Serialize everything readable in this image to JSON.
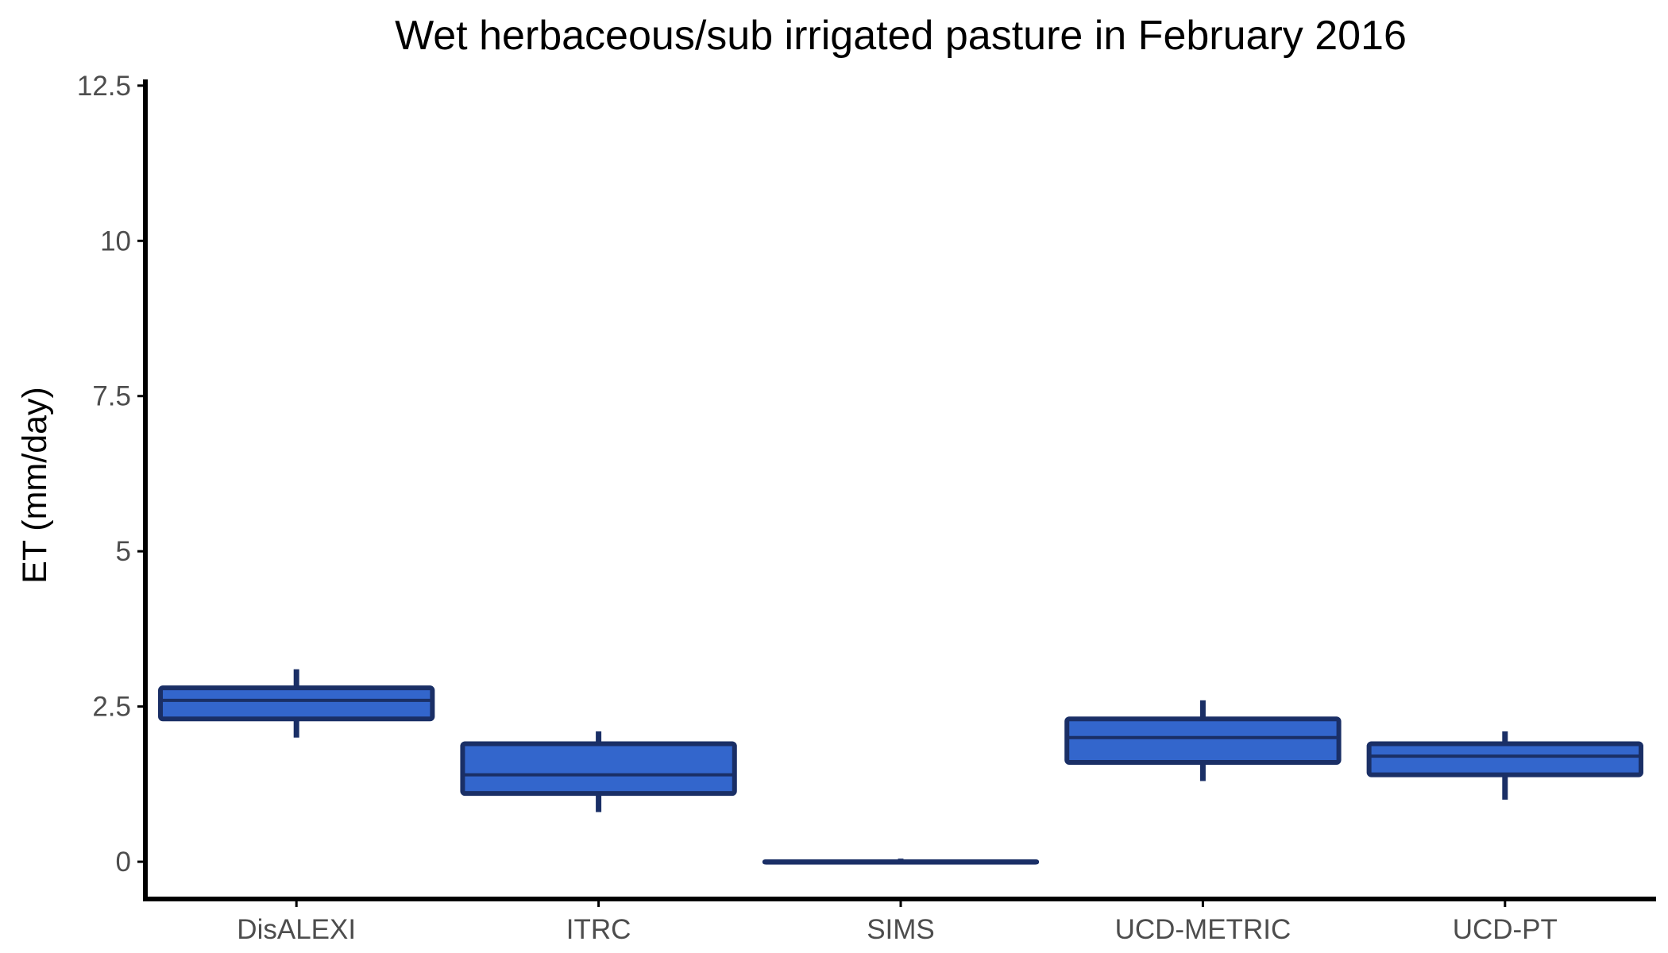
{
  "chart_data": {
    "type": "box",
    "title": "Wet herbaceous/sub irrigated pasture in February 2016",
    "xlabel": "",
    "ylabel": "ET (mm/day)",
    "ylim": [
      -0.6,
      12.6
    ],
    "yticks": [
      0,
      2.5,
      5,
      7.5,
      10,
      12.5
    ],
    "ytick_labels": [
      "0",
      "2.5",
      "5",
      "7.5",
      "10",
      "12.5"
    ],
    "grid": false,
    "legend": "none",
    "categories": [
      "DisALEXI",
      "ITRC",
      "SIMS",
      "UCD-METRIC",
      "UCD-PT"
    ],
    "boxes": [
      {
        "category": "DisALEXI",
        "whisker_low": 2.0,
        "q1": 2.3,
        "median": 2.6,
        "q3": 2.8,
        "whisker_high": 3.1
      },
      {
        "category": "ITRC",
        "whisker_low": 0.8,
        "q1": 1.1,
        "median": 1.4,
        "q3": 1.9,
        "whisker_high": 2.1
      },
      {
        "category": "SIMS",
        "whisker_low": 0.0,
        "q1": 0.0,
        "median": 0.0,
        "q3": 0.0,
        "whisker_high": 0.05
      },
      {
        "category": "UCD-METRIC",
        "whisker_low": 1.3,
        "q1": 1.6,
        "median": 2.0,
        "q3": 2.3,
        "whisker_high": 2.6
      },
      {
        "category": "UCD-PT",
        "whisker_low": 1.0,
        "q1": 1.4,
        "median": 1.7,
        "q3": 1.9,
        "whisker_high": 2.1
      }
    ],
    "colors": {
      "box_fill": "#3366cc",
      "box_outline": "#1a2f66",
      "axis": "#000000"
    }
  }
}
